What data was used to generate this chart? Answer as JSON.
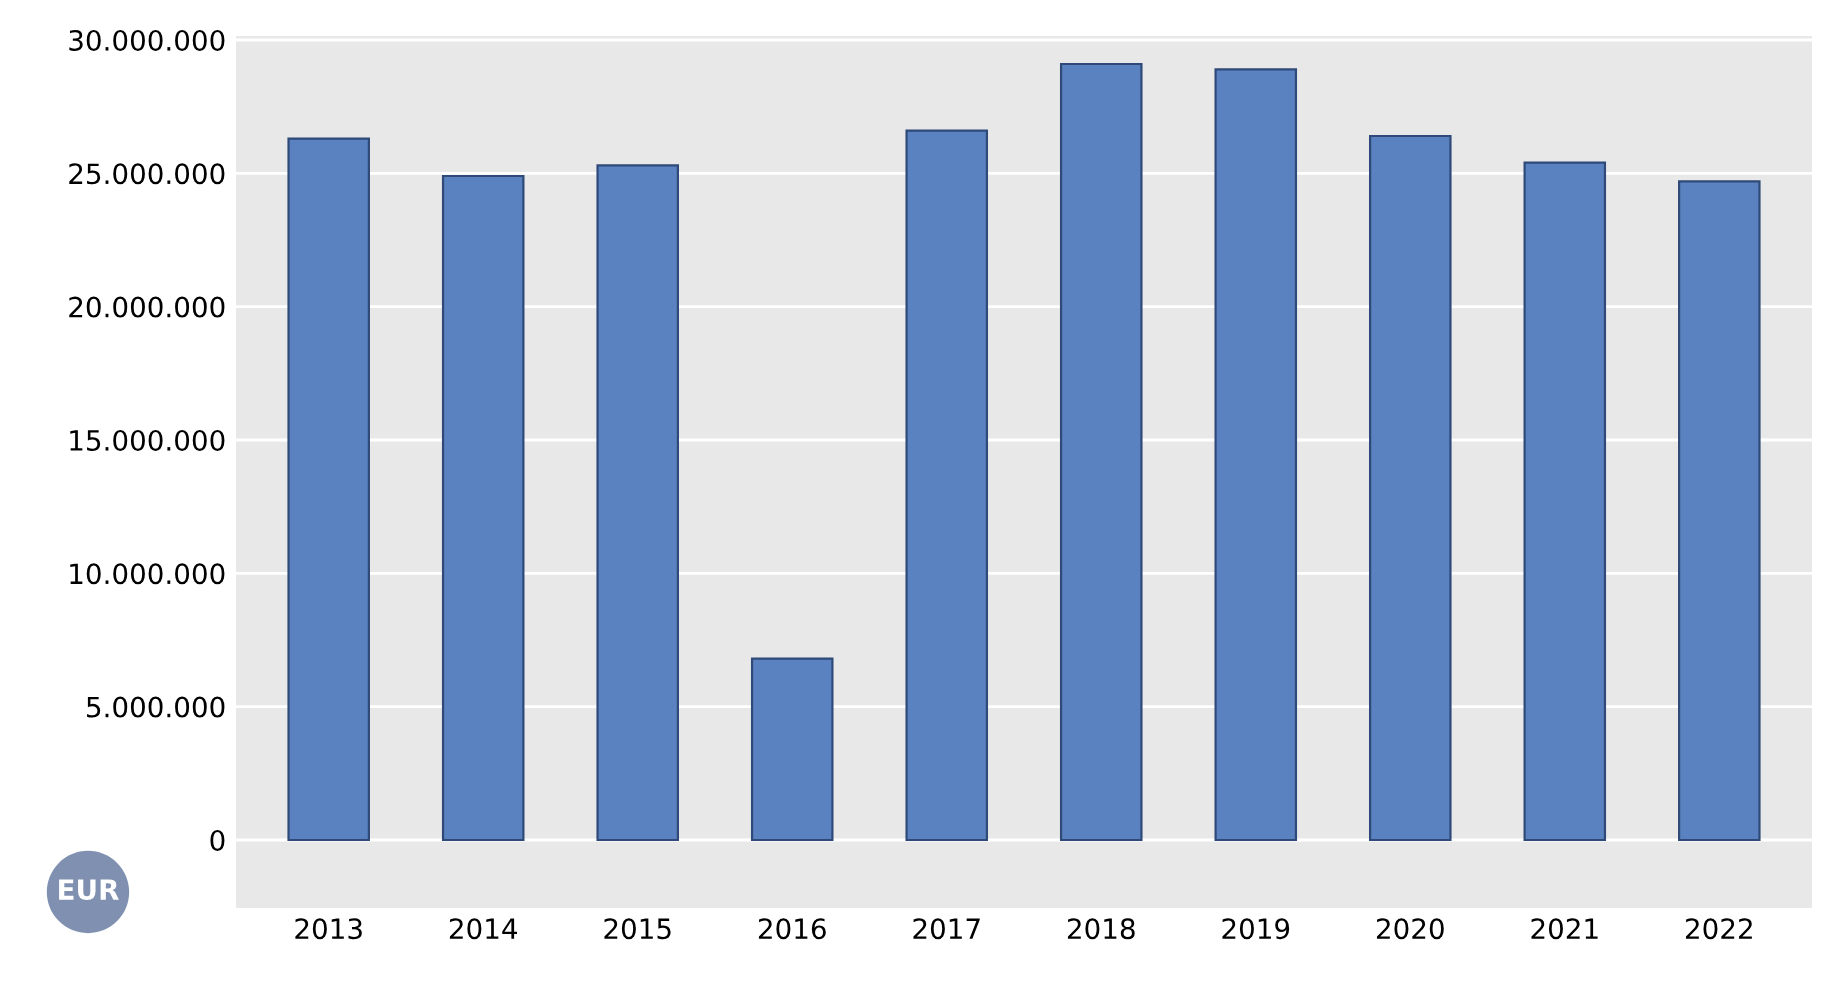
{
  "chart_data": {
    "type": "bar",
    "ylabel": "EUR",
    "categories": [
      "2013",
      "2014",
      "2015",
      "2016",
      "2017",
      "2018",
      "2019",
      "2020",
      "2021",
      "2022"
    ],
    "values": [
      26300000,
      24900000,
      25300000,
      6800000,
      26600000,
      29100000,
      28900000,
      26400000,
      25400000,
      24700000
    ],
    "color": "#5b82c0",
    "ylim": [
      0,
      30000000
    ],
    "yticks": [
      {
        "value": 0,
        "label": "0"
      },
      {
        "value": 5000000,
        "label": "5.000.000"
      },
      {
        "value": 10000000,
        "label": "10.000.000"
      },
      {
        "value": 15000000,
        "label": "15.000.000"
      },
      {
        "value": 20000000,
        "label": "20.000.000"
      },
      {
        "value": 25000000,
        "label": "25.000.000"
      },
      {
        "value": 30000000,
        "label": "30.000.000"
      }
    ],
    "grid": "y"
  }
}
